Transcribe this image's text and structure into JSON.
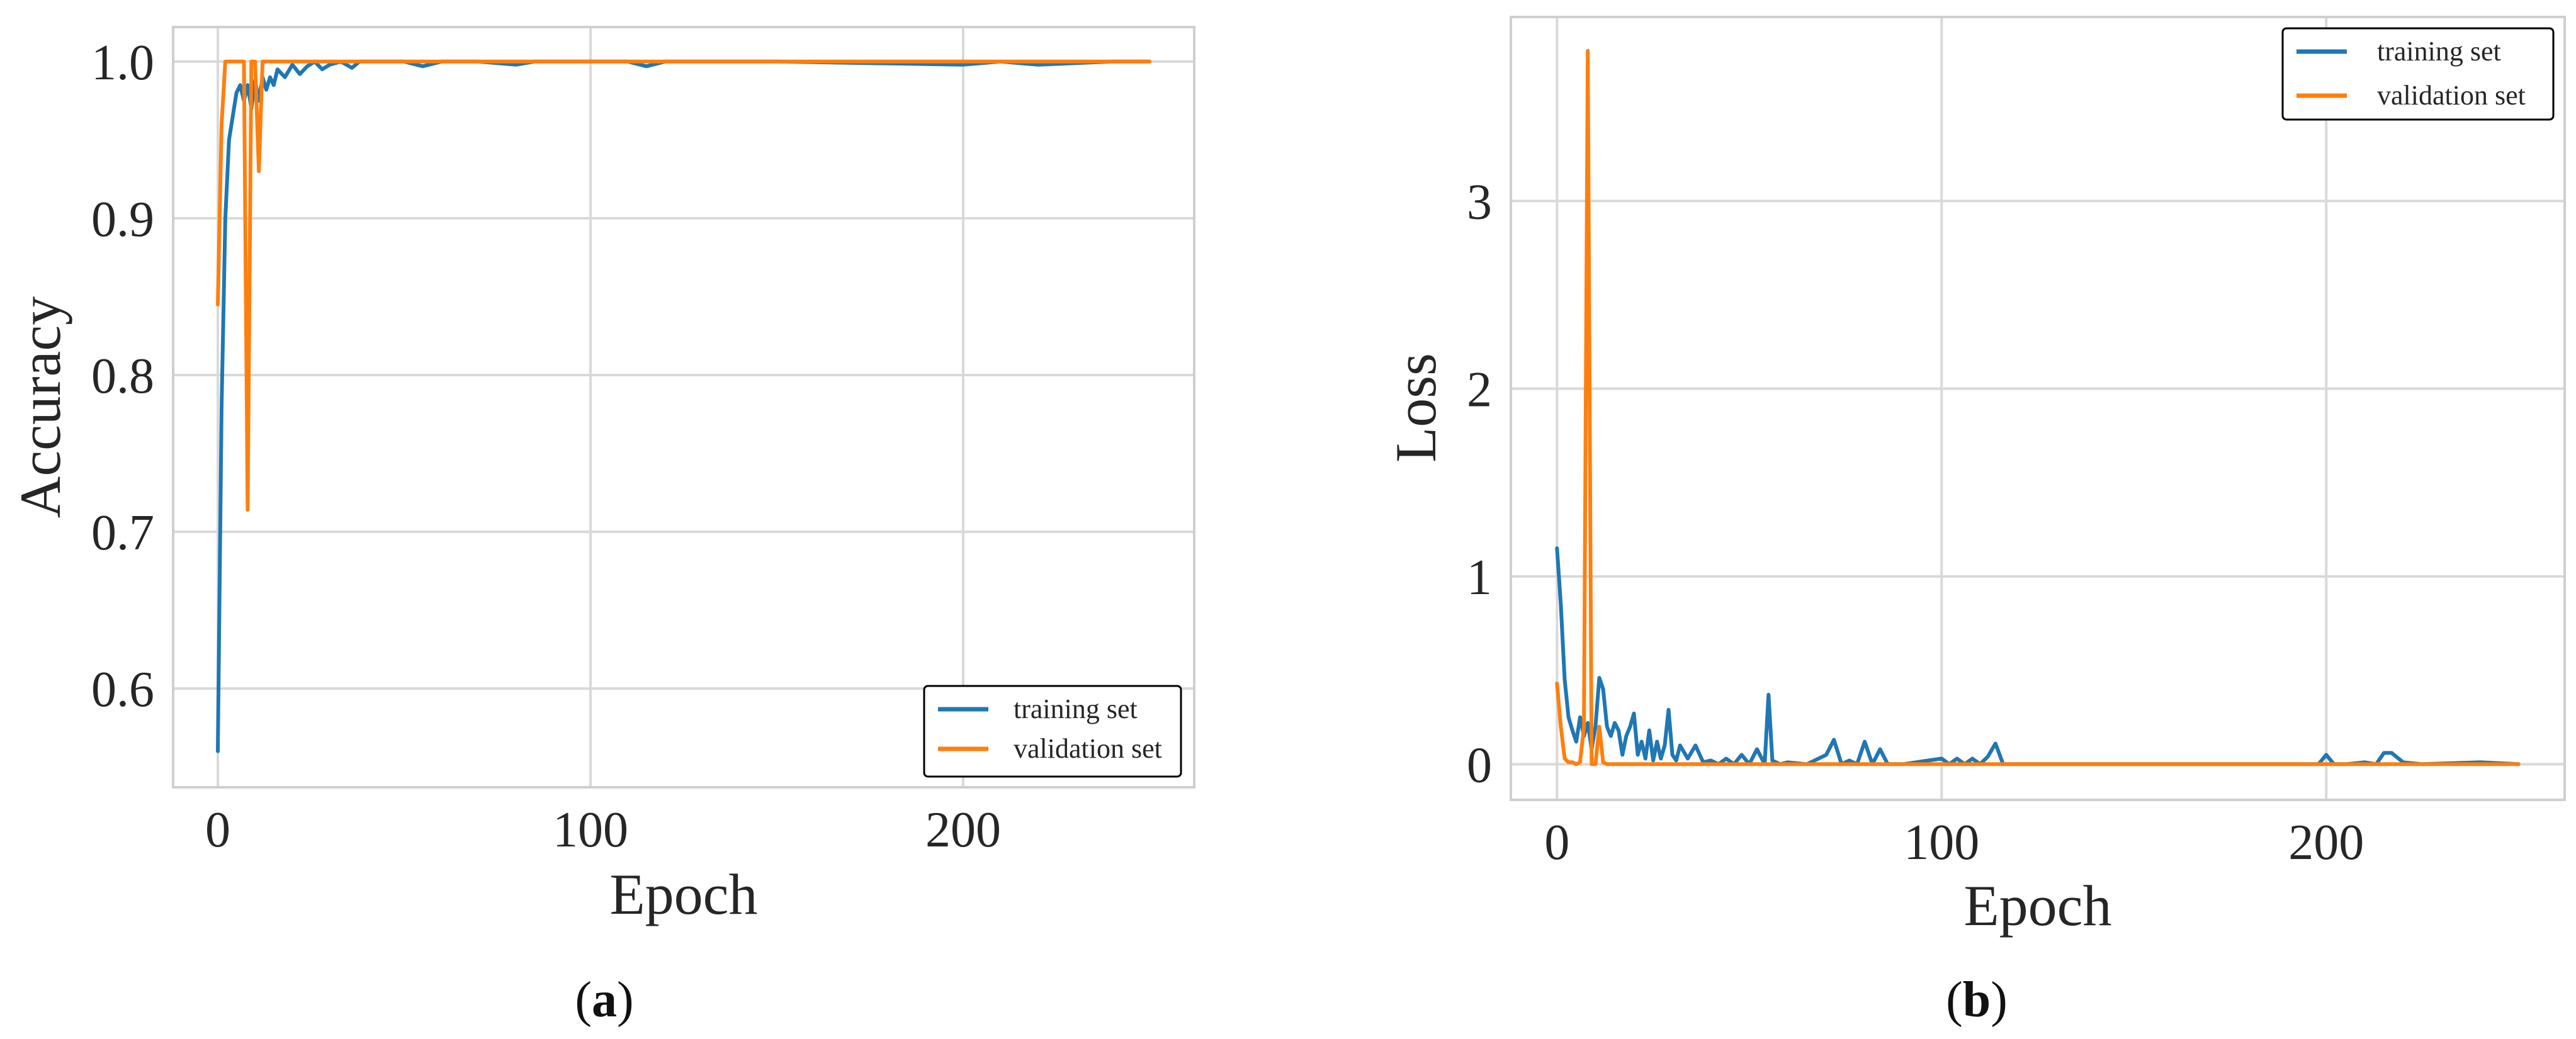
{
  "colors": {
    "training": "#1f77b4",
    "validation": "#ff7f0e"
  },
  "chart_data": [
    {
      "type": "line",
      "title": "",
      "xlabel": "Epoch",
      "ylabel": "Accuracy",
      "xlim": [
        -12,
        262
      ],
      "ylim": [
        0.537,
        1.022
      ],
      "xticks": [
        0,
        100,
        200
      ],
      "yticks": [
        0.6,
        0.7,
        0.8,
        0.9,
        1.0
      ],
      "xtick_labels": [
        "0",
        "100",
        "200"
      ],
      "ytick_labels": [
        "0.6",
        "0.7",
        "0.8",
        "0.9",
        "1.0"
      ],
      "grid": true,
      "legend": "lower-right",
      "caption_letter": "a",
      "caption_open": "(",
      "caption_close": ")",
      "series": [
        {
          "name": "training set",
          "x": [
            0,
            1,
            2,
            3,
            4,
            5,
            6,
            7,
            8,
            9,
            10,
            11,
            12,
            13,
            14,
            15,
            16,
            18,
            20,
            22,
            24,
            26,
            28,
            30,
            33,
            36,
            38,
            40,
            45,
            50,
            55,
            60,
            70,
            80,
            85,
            90,
            100,
            110,
            115,
            120,
            150,
            200,
            210,
            220,
            240,
            250
          ],
          "y": [
            0.56,
            0.78,
            0.9,
            0.95,
            0.965,
            0.98,
            0.985,
            0.975,
            0.985,
            0.97,
            0.988,
            0.975,
            0.99,
            0.982,
            0.99,
            0.985,
            0.995,
            0.99,
            0.998,
            0.992,
            0.997,
            1.0,
            0.995,
            0.998,
            1.0,
            0.996,
            1.0,
            1.0,
            1.0,
            1.0,
            0.997,
            1.0,
            1.0,
            0.998,
            1.0,
            1.0,
            1.0,
            1.0,
            0.997,
            1.0,
            1.0,
            0.998,
            1.0,
            0.998,
            1.0,
            1.0
          ]
        },
        {
          "name": "validation set",
          "x": [
            0,
            1,
            2,
            3,
            4,
            5,
            6,
            7,
            8,
            9,
            10,
            11,
            12,
            13,
            14,
            15,
            20,
            30,
            100,
            200,
            250
          ],
          "y": [
            0.845,
            0.96,
            1.0,
            1.0,
            1.0,
            1.0,
            1.0,
            1.0,
            0.714,
            1.0,
            1.0,
            0.93,
            1.0,
            1.0,
            1.0,
            1.0,
            1.0,
            1.0,
            1.0,
            1.0,
            1.0
          ]
        }
      ]
    },
    {
      "type": "line",
      "title": "",
      "xlabel": "Epoch",
      "ylabel": "Loss",
      "xlim": [
        -12,
        262
      ],
      "ylim": [
        -0.19,
        3.98
      ],
      "xticks": [
        0,
        100,
        200
      ],
      "yticks": [
        0,
        1,
        2,
        3
      ],
      "xtick_labels": [
        "0",
        "100",
        "200"
      ],
      "ytick_labels": [
        "0",
        "1",
        "2",
        "3"
      ],
      "grid": true,
      "legend": "top-right",
      "caption_letter": "b",
      "caption_open": "(",
      "caption_close": ")",
      "series": [
        {
          "name": "training set",
          "x": [
            0,
            1,
            2,
            3,
            4,
            5,
            6,
            7,
            8,
            9,
            10,
            11,
            12,
            13,
            14,
            15,
            16,
            17,
            18,
            19,
            20,
            21,
            22,
            23,
            24,
            25,
            26,
            27,
            28,
            29,
            30,
            31,
            32,
            34,
            36,
            38,
            40,
            42,
            44,
            46,
            48,
            50,
            52,
            54,
            55,
            56,
            58,
            60,
            65,
            70,
            72,
            74,
            76,
            78,
            80,
            82,
            84,
            86,
            90,
            100,
            102,
            104,
            106,
            108,
            110,
            112,
            114,
            116,
            120,
            150,
            198,
            200,
            202,
            205,
            210,
            213,
            215,
            217,
            220,
            225,
            240,
            250
          ],
          "y": [
            1.15,
            0.85,
            0.45,
            0.25,
            0.18,
            0.12,
            0.25,
            0.15,
            0.22,
            0.08,
            0.2,
            0.46,
            0.4,
            0.2,
            0.15,
            0.22,
            0.18,
            0.05,
            0.15,
            0.2,
            0.27,
            0.05,
            0.12,
            0.03,
            0.18,
            0.02,
            0.12,
            0.03,
            0.1,
            0.29,
            0.05,
            0.02,
            0.1,
            0.03,
            0.1,
            0.01,
            0.02,
            0.0,
            0.03,
            0.0,
            0.05,
            0.0,
            0.08,
            0.0,
            0.37,
            0.02,
            0.0,
            0.01,
            0.0,
            0.05,
            0.13,
            0.0,
            0.02,
            0.0,
            0.12,
            0.0,
            0.08,
            0.0,
            0.0,
            0.03,
            0.0,
            0.03,
            0.0,
            0.03,
            0.0,
            0.04,
            0.11,
            0.0,
            0.0,
            0.0,
            0.0,
            0.05,
            0.0,
            0.0,
            0.01,
            0.0,
            0.06,
            0.06,
            0.01,
            0.0,
            0.01,
            0.0
          ]
        },
        {
          "name": "validation set",
          "x": [
            0,
            1,
            2,
            3,
            4,
            5,
            6,
            7,
            8,
            9,
            10,
            11,
            12,
            13,
            14,
            15,
            20,
            50,
            100,
            150,
            200,
            250
          ],
          "y": [
            0.43,
            0.2,
            0.03,
            0.01,
            0.01,
            0.0,
            0.01,
            0.2,
            3.8,
            0.0,
            0.0,
            0.2,
            0.01,
            0.0,
            0.0,
            0.0,
            0.0,
            0.0,
            0.0,
            0.0,
            0.0,
            0.0
          ]
        }
      ]
    }
  ]
}
